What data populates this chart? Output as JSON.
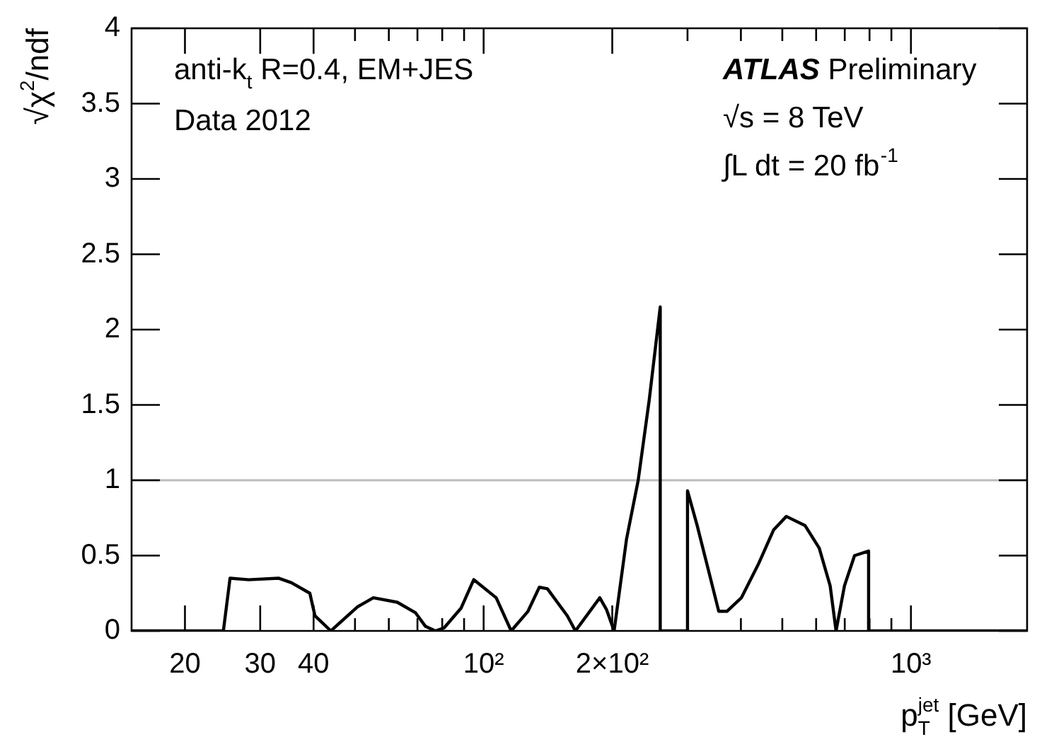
{
  "chart_data": {
    "type": "line",
    "xlabel": "p$_{T}$$^{jet}$ [GeV]",
    "ylabel": "√χ$^{2}$/ndf",
    "annotations": [
      "anti-k$_{t}$ R=0.4, EM+JES",
      "Data 2012",
      "ATLAS Preliminary",
      "√s = 8 TeV",
      "∫L dt = 20 fb$^{-1}$"
    ],
    "x": [
      15,
      24.6,
      25.5,
      28.2,
      33.1,
      35.5,
      39.2,
      40.3,
      43.9,
      50.7,
      55.2,
      62.8,
      69.3,
      73.1,
      77.1,
      80.8,
      88.5,
      94.8,
      107,
      116,
      127,
      135,
      141,
      157,
      164,
      187,
      194,
      202,
      216,
      230,
      244,
      259,
      259,
      300,
      300,
      316,
      336,
      355,
      371,
      401,
      439,
      477,
      511,
      565,
      610,
      647,
      668,
      699,
      738,
      796,
      796,
      1870
    ],
    "series": [
      {
        "color": "#000000",
        "values": [
          0,
          0,
          0.35,
          0.34,
          0.35,
          0.32,
          0.25,
          0.1,
          0,
          0.16,
          0.22,
          0.19,
          0.12,
          0.03,
          0,
          0.02,
          0.15,
          0.34,
          0.22,
          0,
          0.13,
          0.29,
          0.28,
          0.1,
          0,
          0.22,
          0.14,
          0,
          0.61,
          1.0,
          1.53,
          2.15,
          0,
          0,
          0.93,
          0.7,
          0.4,
          0.13,
          0.13,
          0.22,
          0.44,
          0.67,
          0.76,
          0.7,
          0.55,
          0.3,
          0,
          0.3,
          0.5,
          0.53,
          0,
          0
        ]
      }
    ],
    "log": "x",
    "xlim": [
      15,
      1870
    ],
    "xticks": [
      {
        "value": 20,
        "label": "20"
      },
      {
        "value": 30,
        "label": "30"
      },
      {
        "value": 40,
        "label": "40"
      },
      {
        "value": 50,
        "label": null
      },
      {
        "value": 60,
        "label": null
      },
      {
        "value": 70,
        "label": null
      },
      {
        "value": 80,
        "label": null
      },
      {
        "value": 90,
        "label": null
      },
      {
        "value": 100,
        "label": "10²"
      },
      {
        "value": 200,
        "label": "2×10²"
      },
      {
        "value": 300,
        "label": null
      },
      {
        "value": 400,
        "label": null
      },
      {
        "value": 500,
        "label": null
      },
      {
        "value": 600,
        "label": null
      },
      {
        "value": 700,
        "label": null
      },
      {
        "value": 800,
        "label": null
      },
      {
        "value": 900,
        "label": null
      },
      {
        "value": 1000,
        "label": "10³"
      }
    ],
    "ylim": [
      0,
      4
    ],
    "yticks": [
      0,
      0.5,
      1,
      1.5,
      2,
      2.5,
      3,
      3.5,
      4
    ],
    "ref_lines": [
      {
        "axis": "y",
        "value": 1,
        "color": "#bbbbbb"
      }
    ],
    "marker": "none",
    "line_style": "solid"
  }
}
